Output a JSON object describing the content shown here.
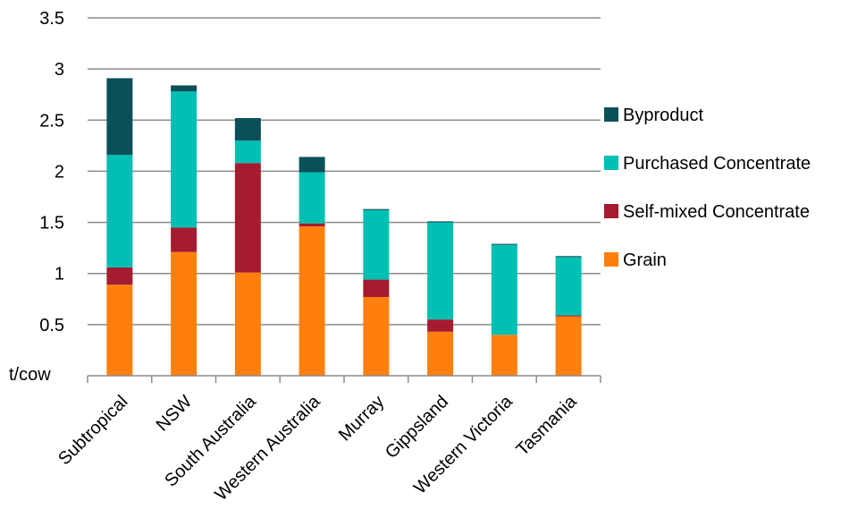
{
  "chart_data": {
    "type": "bar",
    "stacked": true,
    "categories": [
      "Subtropical",
      "NSW",
      "South Australia",
      "Western Australia",
      "Murray",
      "Gippsland",
      "Western Victoria",
      "Tasmania"
    ],
    "series": [
      {
        "name": "Grain",
        "color": "#ff7f0e",
        "values": [
          0.89,
          1.21,
          1.01,
          1.46,
          0.77,
          0.43,
          0.4,
          0.58
        ]
      },
      {
        "name": "Self-mixed Concentrate",
        "color": "#a51c30",
        "values": [
          0.17,
          0.24,
          1.07,
          0.03,
          0.17,
          0.12,
          0.0,
          0.01
        ]
      },
      {
        "name": "Purchased Concentrate",
        "color": "#00bfb3",
        "values": [
          1.1,
          1.33,
          0.22,
          0.5,
          0.68,
          0.95,
          0.88,
          0.57
        ]
      },
      {
        "name": "Byproduct",
        "color": "#0b5058",
        "values": [
          0.75,
          0.06,
          0.22,
          0.15,
          0.01,
          0.01,
          0.01,
          0.01
        ]
      }
    ],
    "ylabel": "t/cow",
    "ylim": [
      0,
      3.5
    ],
    "yticks": [
      "0.5",
      "1",
      "1.5",
      "2",
      "2.5",
      "3",
      "3.5"
    ],
    "grid": true,
    "legend_position": "right"
  }
}
